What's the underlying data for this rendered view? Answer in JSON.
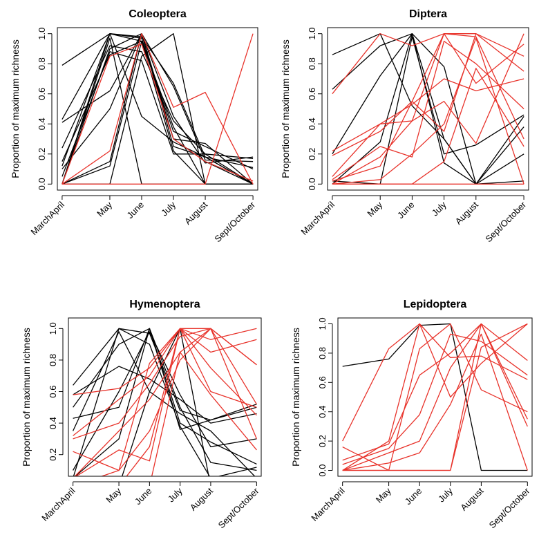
{
  "chart_data": [
    {
      "type": "line",
      "title": "Coleoptera",
      "xlabel": "",
      "ylabel": "Proportion of maximum richness",
      "categories": [
        "MarchApril",
        "May",
        "June",
        "July",
        "August",
        "Sept/October"
      ],
      "x": [
        0,
        1.5,
        2.5,
        3.5,
        4.5,
        6
      ],
      "ylim": [
        0,
        1
      ],
      "yticks": [
        "0.0",
        "0.2",
        "0.4",
        "0.6",
        "0.8",
        "1.0"
      ],
      "grid": false,
      "series": [
        {
          "color": "#000000",
          "values": [
            0.79,
            1.0,
            0.98,
            0.67,
            0.18,
            0.11
          ]
        },
        {
          "color": "#000000",
          "values": [
            0.41,
            0.62,
            1.0,
            0.65,
            0.16,
            0.15
          ]
        },
        {
          "color": "#000000",
          "values": [
            0.43,
            1.0,
            0.97,
            0.3,
            0.27,
            0.0
          ]
        },
        {
          "color": "#000000",
          "values": [
            0.24,
            0.92,
            0.88,
            0.42,
            0.2,
            0.17
          ]
        },
        {
          "color": "#000000",
          "values": [
            0.15,
            0.86,
            0.95,
            0.35,
            0.25,
            0.1
          ]
        },
        {
          "color": "#000000",
          "values": [
            0.12,
            1.0,
            0.45,
            0.28,
            0.18,
            0.0
          ]
        },
        {
          "color": "#000000",
          "values": [
            0.1,
            0.5,
            1.0,
            0.3,
            0.15,
            0.0
          ]
        },
        {
          "color": "#000000",
          "values": [
            0.05,
            0.88,
            0.82,
            0.2,
            0.2,
            0.0
          ]
        },
        {
          "color": "#000000",
          "values": [
            0.0,
            0.9,
            1.0,
            0.25,
            0.18,
            0.0
          ]
        },
        {
          "color": "#000000",
          "values": [
            0.0,
            1.0,
            0.95,
            0.22,
            0.0,
            0.0
          ]
        },
        {
          "color": "#000000",
          "values": [
            0.0,
            0.15,
            1.0,
            0.45,
            0.14,
            0.18
          ]
        },
        {
          "color": "#000000",
          "values": [
            0.0,
            0.12,
            0.95,
            0.38,
            0.0,
            0.0
          ]
        },
        {
          "color": "#000000",
          "values": [
            0.0,
            0.0,
            0.85,
            1.0,
            0.0,
            0.0
          ]
        },
        {
          "color": "#000000",
          "values": [
            0.0,
            0.97,
            0.0,
            0.0,
            0.0,
            0.0
          ]
        },
        {
          "color": "#e8322a",
          "values": [
            0.0,
            0.22,
            1.0,
            0.51,
            0.61,
            0.0
          ]
        },
        {
          "color": "#e8322a",
          "values": [
            0.0,
            0.0,
            0.0,
            0.0,
            0.0,
            1.0
          ]
        },
        {
          "color": "#e8322a",
          "values": [
            0.0,
            0.85,
            0.93,
            0.3,
            0.15,
            0.02
          ]
        }
      ]
    },
    {
      "type": "line",
      "title": "Diptera",
      "xlabel": "",
      "ylabel": "Proportion of maximum richness",
      "categories": [
        "MarchApril",
        "May",
        "June",
        "July",
        "August",
        "Sept/October"
      ],
      "x": [
        0,
        1.5,
        2.5,
        3.5,
        4.5,
        6
      ],
      "ylim": [
        0,
        1
      ],
      "yticks": [
        "0.0",
        "0.2",
        "0.4",
        "0.6",
        "0.8",
        "1.0"
      ],
      "grid": false,
      "series": [
        {
          "color": "#000000",
          "values": [
            0.86,
            1.0,
            0.52,
            0.3,
            0.0,
            0.2
          ]
        },
        {
          "color": "#000000",
          "values": [
            0.63,
            0.92,
            1.0,
            0.14,
            0.0,
            0.02
          ]
        },
        {
          "color": "#000000",
          "values": [
            0.2,
            0.72,
            1.0,
            0.78,
            0.0,
            0.45
          ]
        },
        {
          "color": "#000000",
          "values": [
            0.0,
            0.28,
            1.0,
            0.3,
            0.0,
            0.38
          ]
        },
        {
          "color": "#000000",
          "values": [
            0.02,
            0.0,
            0.98,
            0.2,
            0.26,
            0.46
          ]
        },
        {
          "color": "#e8322a",
          "values": [
            0.6,
            1.0,
            0.92,
            1.0,
            0.67,
            0.93
          ]
        },
        {
          "color": "#e8322a",
          "values": [
            0.22,
            0.4,
            0.42,
            1.0,
            1.0,
            0.75
          ]
        },
        {
          "color": "#e8322a",
          "values": [
            0.19,
            0.35,
            0.55,
            0.35,
            1.0,
            0.85
          ]
        },
        {
          "color": "#e8322a",
          "values": [
            0.05,
            0.4,
            0.53,
            0.7,
            0.62,
            0.7
          ]
        },
        {
          "color": "#e8322a",
          "values": [
            0.03,
            0.25,
            0.18,
            0.95,
            0.8,
            0.5
          ]
        },
        {
          "color": "#e8322a",
          "values": [
            0.0,
            0.18,
            0.42,
            0.55,
            0.27,
            1.0
          ]
        },
        {
          "color": "#e8322a",
          "values": [
            0.0,
            0.03,
            0.2,
            0.4,
            0.97,
            0.0
          ]
        },
        {
          "color": "#e8322a",
          "values": [
            0.0,
            0.0,
            0.0,
            0.15,
            0.77,
            0.25
          ]
        },
        {
          "color": "#e8322a",
          "values": [
            0.02,
            0.12,
            0.55,
            1.0,
            0.98,
            0.3
          ]
        },
        {
          "color": "#e8322a",
          "values": [
            0.0,
            0.0,
            0.0,
            0.0,
            0.0,
            0.0
          ]
        }
      ]
    },
    {
      "type": "line",
      "title": "Hymenoptera",
      "xlabel": "",
      "ylabel": "Proportion of maximum richness",
      "categories": [
        "MarchApril",
        "May",
        "June",
        "July",
        "August",
        "Sept/October"
      ],
      "x": [
        0,
        1.5,
        2.5,
        3.5,
        4.5,
        6
      ],
      "ylim": [
        0.1,
        1.03
      ],
      "yticks": [
        "0.2",
        "0.4",
        "0.6",
        "0.8",
        "1.0"
      ],
      "grid": false,
      "series": [
        {
          "color": "#000000",
          "values": [
            0.64,
            1.0,
            0.97,
            0.48,
            0.42,
            0.5
          ]
        },
        {
          "color": "#000000",
          "values": [
            0.58,
            0.76,
            0.68,
            0.55,
            0.4,
            0.46
          ]
        },
        {
          "color": "#000000",
          "values": [
            0.5,
            0.9,
            1.0,
            0.4,
            0.28,
            0.14
          ]
        },
        {
          "color": "#000000",
          "values": [
            0.43,
            0.5,
            1.0,
            0.36,
            0.42,
            0.52
          ]
        },
        {
          "color": "#000000",
          "values": [
            0.35,
            0.98,
            0.6,
            0.46,
            0.35,
            0.05
          ]
        },
        {
          "color": "#000000",
          "values": [
            0.1,
            0.6,
            0.98,
            0.58,
            0.25,
            0.3
          ]
        },
        {
          "color": "#000000",
          "values": [
            0.05,
            0.3,
            1.0,
            0.5,
            0.15,
            0.1
          ]
        },
        {
          "color": "#000000",
          "values": [
            0.05,
            1.0,
            0.9,
            0.38,
            0.05,
            0.12
          ]
        },
        {
          "color": "#000000",
          "values": [
            0.05,
            0.0,
            0.6,
            1.0,
            0.0,
            0.0
          ]
        },
        {
          "color": "#e8322a",
          "values": [
            0.58,
            0.62,
            0.75,
            1.0,
            0.93,
            1.0
          ]
        },
        {
          "color": "#e8322a",
          "values": [
            0.32,
            0.55,
            0.7,
            1.0,
            0.85,
            0.93
          ]
        },
        {
          "color": "#e8322a",
          "values": [
            0.3,
            0.4,
            0.65,
            0.95,
            1.0,
            0.77
          ]
        },
        {
          "color": "#e8322a",
          "values": [
            0.22,
            0.1,
            0.35,
            0.8,
            1.0,
            0.52
          ]
        },
        {
          "color": "#e8322a",
          "values": [
            0.05,
            0.23,
            0.16,
            1.0,
            0.6,
            0.5
          ]
        },
        {
          "color": "#e8322a",
          "values": [
            0.05,
            0.0,
            0.25,
            1.0,
            0.75,
            0.45
          ]
        },
        {
          "color": "#e8322a",
          "values": [
            0.0,
            0.1,
            0.78,
            1.0,
            1.0,
            0.77
          ]
        },
        {
          "color": "#e8322a",
          "values": [
            0.05,
            0.35,
            0.55,
            0.85,
            0.58,
            0.23
          ]
        },
        {
          "color": "#e8322a",
          "values": [
            0.0,
            0.0,
            0.0,
            0.85,
            1.0,
            0.3
          ]
        }
      ]
    },
    {
      "type": "line",
      "title": "Lepidoptera",
      "xlabel": "",
      "ylabel": "Proportion of maximum richness",
      "categories": [
        "MarchApril",
        "May",
        "June",
        "July",
        "August",
        "Sept/October"
      ],
      "x": [
        0,
        1.5,
        2.5,
        3.5,
        4.5,
        6
      ],
      "ylim": [
        0,
        1
      ],
      "yticks": [
        "0.0",
        "0.2",
        "0.4",
        "0.6",
        "0.8",
        "1.0"
      ],
      "grid": false,
      "series": [
        {
          "color": "#000000",
          "values": [
            0.71,
            0.76,
            0.99,
            1.0,
            0.0,
            0.0
          ]
        },
        {
          "color": "#e8322a",
          "values": [
            0.2,
            0.83,
            1.0,
            0.77,
            0.78,
            0.62
          ]
        },
        {
          "color": "#e8322a",
          "values": [
            0.16,
            0.0,
            0.83,
            1.0,
            0.55,
            0.4
          ]
        },
        {
          "color": "#e8322a",
          "values": [
            0.07,
            0.18,
            0.65,
            0.8,
            1.0,
            0.75
          ]
        },
        {
          "color": "#e8322a",
          "values": [
            0.04,
            0.15,
            0.38,
            0.93,
            0.88,
            0.65
          ]
        },
        {
          "color": "#e8322a",
          "values": [
            0.0,
            0.12,
            0.2,
            0.7,
            1.0,
            0.35
          ]
        },
        {
          "color": "#e8322a",
          "values": [
            0.0,
            0.05,
            0.12,
            0.45,
            0.93,
            0.0
          ]
        },
        {
          "color": "#e8322a",
          "values": [
            0.0,
            0.2,
            1.0,
            0.5,
            0.73,
            1.0
          ]
        },
        {
          "color": "#e8322a",
          "values": [
            0.0,
            0.0,
            0.0,
            0.0,
            1.0,
            0.3
          ]
        },
        {
          "color": "#e8322a",
          "values": [
            0.0,
            0.0,
            0.0,
            0.0,
            0.84,
            1.0
          ]
        }
      ]
    }
  ]
}
